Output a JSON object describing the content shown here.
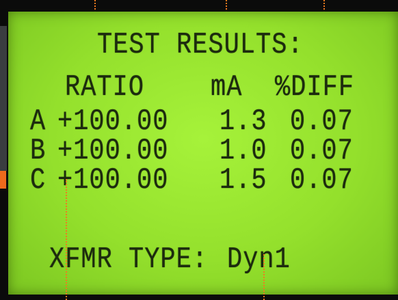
{
  "screen": {
    "title": "TEST RESULTS:",
    "table": {
      "columns": [
        "RATIO",
        "mA",
        "%DIFF"
      ],
      "rows": [
        [
          "A",
          "+100.00",
          "1.3",
          "0.07"
        ],
        [
          "B",
          "+100.00",
          "1.0",
          "0.07"
        ],
        [
          "C",
          "+100.00",
          "1.5",
          "0.07"
        ]
      ]
    },
    "footer": {
      "label": "XFMR TYPE:",
      "value": "Dyn1"
    }
  }
}
